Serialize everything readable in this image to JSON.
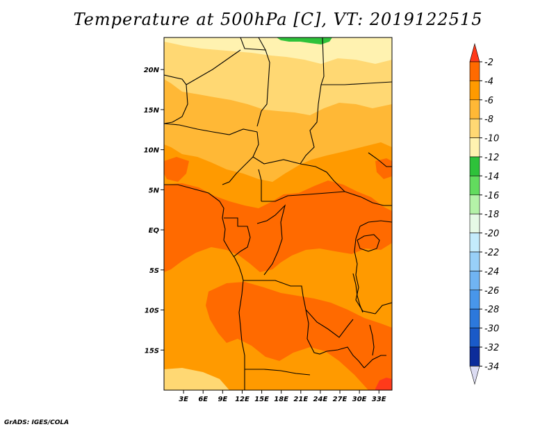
{
  "title": "Temperature at 500hPa [C], VT: 2019122515",
  "credit": "GrADS: IGES/COLA",
  "map": {
    "lon_range": [
      0,
      35
    ],
    "lat_range": [
      -20,
      24
    ],
    "lon_ticks": [
      {
        "value": 3,
        "label": "3E"
      },
      {
        "value": 6,
        "label": "6E"
      },
      {
        "value": 9,
        "label": "9E"
      },
      {
        "value": 12,
        "label": "12E"
      },
      {
        "value": 15,
        "label": "15E"
      },
      {
        "value": 18,
        "label": "18E"
      },
      {
        "value": 21,
        "label": "21E"
      },
      {
        "value": 24,
        "label": "24E"
      },
      {
        "value": 27,
        "label": "27E"
      },
      {
        "value": 30,
        "label": "30E"
      },
      {
        "value": 33,
        "label": "33E"
      }
    ],
    "lat_ticks": [
      {
        "value": 20,
        "label": "20N"
      },
      {
        "value": 15,
        "label": "15N"
      },
      {
        "value": 10,
        "label": "10N"
      },
      {
        "value": 5,
        "label": "5N"
      },
      {
        "value": 0,
        "label": "EQ"
      },
      {
        "value": -5,
        "label": "5S"
      },
      {
        "value": -10,
        "label": "10S"
      },
      {
        "value": -15,
        "label": "15S"
      }
    ]
  },
  "colorbar": {
    "levels": [
      {
        "label": "-2",
        "color": "#ff3a1a"
      },
      {
        "label": "-4",
        "color": "#ff6a00"
      },
      {
        "label": "-6",
        "color": "#ff9a00"
      },
      {
        "label": "-8",
        "color": "#ffb836"
      },
      {
        "label": "-10",
        "color": "#ffd873"
      },
      {
        "label": "-12",
        "color": "#fff2b0"
      },
      {
        "label": "-14",
        "color": "#2ec23a"
      },
      {
        "label": "-16",
        "color": "#62dc5e"
      },
      {
        "label": "-18",
        "color": "#b4f2a8"
      },
      {
        "label": "-20",
        "color": "#e6fae6"
      },
      {
        "label": "-22",
        "color": "#c4ecfc"
      },
      {
        "label": "-24",
        "color": "#98d0f8"
      },
      {
        "label": "-26",
        "color": "#70b4f2"
      },
      {
        "label": "-28",
        "color": "#4896ea"
      },
      {
        "label": "-30",
        "color": "#2c78dc"
      },
      {
        "label": "-32",
        "color": "#1a5ac8"
      },
      {
        "label": "-34",
        "color": "#0c2c9a"
      }
    ],
    "top_color": "#ff3a1a",
    "bottom_color": "#dcdcf2",
    "deep_color": "#0a1a7a"
  }
}
